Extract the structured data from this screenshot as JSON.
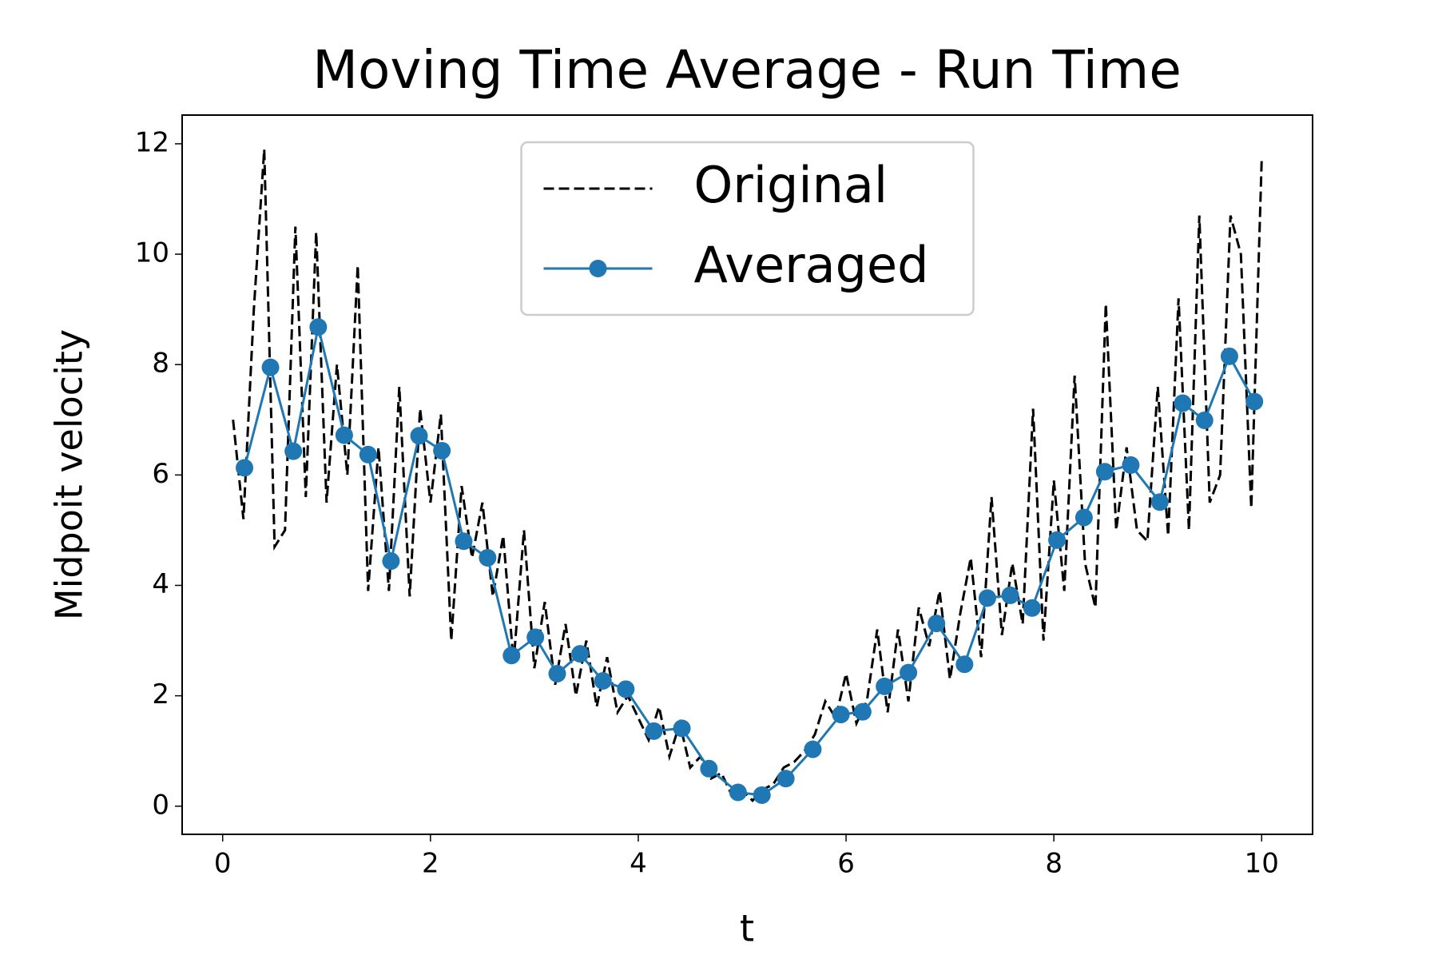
{
  "chart_data": {
    "type": "line",
    "title": "Moving Time Average - Run Time",
    "x_label": "t",
    "y_label": "Midpoit velocity",
    "xlim": [
      -0.39,
      10.49
    ],
    "ylim": [
      -0.51,
      12.52
    ],
    "xticks": [
      0,
      2,
      4,
      6,
      8,
      10
    ],
    "yticks": [
      0,
      2,
      4,
      6,
      8,
      10,
      12
    ],
    "legend": "upper center",
    "series": [
      {
        "name": "Original",
        "color": "#000000",
        "linestyle": "dashed",
        "marker": "none",
        "x": [
          0.1,
          0.2,
          0.3,
          0.4,
          0.5,
          0.6,
          0.7,
          0.8,
          0.9,
          1.0,
          1.1,
          1.2,
          1.3,
          1.4,
          1.5,
          1.6,
          1.7,
          1.8,
          1.9,
          2.0,
          2.1,
          2.2,
          2.3,
          2.4,
          2.5,
          2.6,
          2.7,
          2.8,
          2.9,
          3.0,
          3.1,
          3.2,
          3.3,
          3.4,
          3.5,
          3.6,
          3.7,
          3.8,
          3.9,
          4.0,
          4.1,
          4.2,
          4.3,
          4.4,
          4.5,
          4.6,
          4.7,
          4.8,
          4.9,
          5.0,
          5.1,
          5.2,
          5.3,
          5.4,
          5.5,
          5.6,
          5.7,
          5.8,
          5.9,
          6.0,
          6.1,
          6.2,
          6.3,
          6.4,
          6.5,
          6.6,
          6.7,
          6.8,
          6.9,
          7.0,
          7.1,
          7.2,
          7.3,
          7.4,
          7.5,
          7.6,
          7.7,
          7.8,
          7.9,
          8.0,
          8.1,
          8.2,
          8.3,
          8.4,
          8.5,
          8.6,
          8.7,
          8.8,
          8.9,
          9.0,
          9.1,
          9.2,
          9.3,
          9.4,
          9.5,
          9.6,
          9.7,
          9.8,
          9.9,
          10.0
        ],
        "values": [
          7.0,
          5.2,
          9.0,
          11.9,
          4.7,
          5.0,
          10.5,
          5.6,
          10.4,
          5.5,
          8.0,
          6.0,
          9.8,
          3.9,
          6.5,
          3.9,
          7.6,
          3.8,
          7.2,
          5.5,
          7.1,
          3.0,
          5.8,
          4.5,
          5.5,
          3.8,
          4.9,
          2.6,
          5.0,
          2.5,
          3.7,
          2.2,
          3.3,
          2.0,
          3.0,
          1.8,
          2.7,
          1.7,
          2.0,
          1.6,
          1.2,
          1.8,
          0.9,
          1.5,
          0.7,
          0.9,
          0.5,
          0.6,
          0.2,
          0.3,
          0.1,
          0.3,
          0.4,
          0.7,
          0.8,
          1.0,
          1.3,
          1.9,
          1.6,
          2.4,
          1.5,
          1.9,
          3.2,
          1.7,
          3.2,
          1.9,
          3.6,
          2.9,
          3.9,
          2.3,
          3.5,
          4.5,
          2.7,
          5.6,
          3.1,
          4.4,
          3.3,
          7.2,
          3.0,
          5.9,
          3.9,
          7.8,
          4.4,
          3.6,
          9.1,
          5.0,
          6.5,
          5.0,
          4.8,
          7.6,
          4.9,
          9.2,
          5.0,
          10.7,
          5.5,
          6.0,
          10.7,
          10.0,
          5.4,
          11.7
        ]
      },
      {
        "name": "Averaged",
        "color": "#1f77b4",
        "linestyle": "solid",
        "marker": "o",
        "x": [
          0.21,
          0.46,
          0.68,
          0.92,
          1.17,
          1.4,
          1.62,
          1.89,
          2.11,
          2.32,
          2.55,
          2.78,
          3.01,
          3.22,
          3.44,
          3.66,
          3.88,
          4.15,
          4.42,
          4.68,
          4.96,
          5.19,
          5.42,
          5.68,
          5.95,
          6.16,
          6.37,
          6.6,
          6.87,
          7.14,
          7.36,
          7.58,
          7.79,
          8.03,
          8.29,
          8.49,
          8.74,
          9.02,
          9.24,
          9.45,
          9.69,
          9.93
        ],
        "values": [
          6.13,
          7.95,
          6.43,
          8.68,
          6.72,
          6.37,
          4.44,
          6.71,
          6.44,
          4.8,
          4.5,
          2.73,
          3.06,
          2.4,
          2.76,
          2.27,
          2.12,
          1.36,
          1.41,
          0.68,
          0.25,
          0.2,
          0.5,
          1.03,
          1.66,
          1.71,
          2.17,
          2.42,
          3.31,
          2.57,
          3.77,
          3.82,
          3.59,
          4.82,
          5.23,
          6.06,
          6.18,
          5.51,
          7.3,
          6.99,
          8.15,
          7.33
        ]
      }
    ]
  }
}
